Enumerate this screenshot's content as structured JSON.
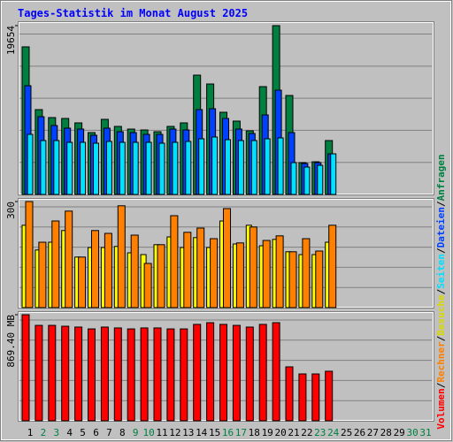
{
  "chart_data": {
    "type": "bar",
    "title": "Tages-Statistik im Monat August 2025",
    "categories": [
      "1",
      "2",
      "3",
      "4",
      "5",
      "6",
      "7",
      "8",
      "9",
      "10",
      "11",
      "12",
      "13",
      "14",
      "15",
      "16",
      "17",
      "18",
      "19",
      "20",
      "21",
      "22",
      "23",
      "24",
      "25",
      "26",
      "27",
      "28",
      "29",
      "30",
      "31"
    ],
    "category_colors": [
      "#000000",
      "#008040",
      "#008040",
      "#000000",
      "#000000",
      "#000000",
      "#000000",
      "#000000",
      "#008040",
      "#008040",
      "#000000",
      "#000000",
      "#000000",
      "#000000",
      "#000000",
      "#008040",
      "#008040",
      "#000000",
      "#000000",
      "#000000",
      "#000000",
      "#000000",
      "#008040",
      "#008040",
      "#000000",
      "#000000",
      "#000000",
      "#000000",
      "#000000",
      "#008040",
      "#008040"
    ],
    "legend_separator": "/",
    "grid": true,
    "panels": [
      {
        "ylim": [
          0,
          19654
        ],
        "yticks": [
          19654
        ],
        "series": [
          {
            "name": "Anfragen",
            "color": "#008040",
            "values": [
              17185,
              9878,
              8952,
              8849,
              8335,
              7203,
              8746,
              7923,
              7614,
              7512,
              7306,
              7923,
              8335,
              13891,
              12862,
              9570,
              8541,
              7409,
              12554,
              19654,
              11525,
              3704,
              3807,
              6277,
              0,
              0,
              0,
              0,
              0,
              0,
              0
            ]
          },
          {
            "name": "Dateien",
            "color": "#0040ff",
            "values": [
              12657,
              9055,
              8026,
              7717,
              7614,
              6894,
              7717,
              7306,
              7203,
              6997,
              6997,
              7614,
              7512,
              9878,
              9981,
              8849,
              7614,
              7100,
              9261,
              12142,
              7203,
              3601,
              3704,
              4733,
              0,
              0,
              0,
              0,
              0,
              0,
              0
            ]
          },
          {
            "name": "Seiten",
            "color": "#00e0ff",
            "values": [
              6997,
              6277,
              6277,
              6071,
              6071,
              5968,
              6174,
              6071,
              6071,
              6071,
              5968,
              6071,
              6174,
              6483,
              6689,
              6380,
              6277,
              6277,
              6483,
              6586,
              3704,
              3190,
              3396,
              4733,
              0,
              0,
              0,
              0,
              0,
              0,
              0
            ]
          }
        ]
      },
      {
        "ylim": [
          0,
          300
        ],
        "yticks": [
          300
        ],
        "series": [
          {
            "name": "Besuche",
            "color": "#ffff00",
            "values": [
              233,
              163,
              185,
              218,
              143,
              170,
              170,
              173,
              155,
              150,
              178,
              200,
              170,
              198,
              170,
              245,
              180,
              233,
              175,
              193,
              158,
              150,
              150,
              185,
              0,
              0,
              0,
              0,
              0,
              0,
              0
            ]
          },
          {
            "name": "Rechner",
            "color": "#ff8000",
            "values": [
              300,
              185,
              245,
              273,
              143,
              218,
              210,
              288,
              205,
              125,
              178,
              260,
              213,
              225,
              195,
              280,
              183,
              228,
              190,
              203,
              158,
              195,
              160,
              233,
              0,
              0,
              0,
              0,
              0,
              0,
              0
            ]
          }
        ]
      },
      {
        "ylim": [
          0,
          869.4
        ],
        "yticks": [
          {
            "value": 869.4,
            "label": "869.40 MB"
          }
        ],
        "series": [
          {
            "name": "Volumen",
            "color": "#ff0000",
            "values": [
              869.4,
              782,
              782,
              775,
              768,
              753,
              768,
              761,
              753,
              761,
              761,
              753,
              753,
              790,
              804,
              790,
              782,
              768,
              790,
              804,
              442,
              384,
              384,
              406,
              0,
              0,
              0,
              0,
              0,
              0,
              0
            ]
          }
        ]
      }
    ]
  }
}
